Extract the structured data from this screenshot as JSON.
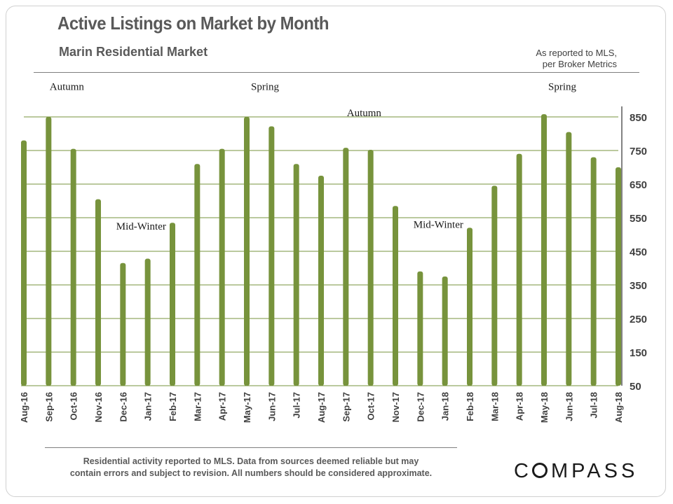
{
  "header": {
    "title": "Active Listings on Market by Month",
    "subtitle": "Marin Residential Market",
    "source_line1": "As reported to MLS,",
    "source_line2": "per Broker Metrics"
  },
  "footer": {
    "disclaimer_line1": "Residential activity reported to MLS. Data from sources  deemed reliable but may",
    "disclaimer_line2": "contain errors and subject to revision. All numbers should  be considered approximate.",
    "logo_part1": "C",
    "logo_part2": "MPASS"
  },
  "colors": {
    "bar": "#77933c",
    "grid": "#77933c",
    "text": "#404040"
  },
  "chart_data": {
    "type": "bar",
    "title": "Active Listings on Market by Month",
    "subtitle": "Marin Residential Market",
    "xlabel": "",
    "ylabel": "",
    "ylim": [
      50,
      850
    ],
    "yticks": [
      50,
      150,
      250,
      350,
      450,
      550,
      650,
      750,
      850
    ],
    "y_axis_position": "right",
    "grid": true,
    "categories": [
      "Aug-16",
      "Sep-16",
      "Oct-16",
      "Nov-16",
      "Dec-16",
      "Jan-17",
      "Feb-17",
      "Mar-17",
      "Apr-17",
      "May-17",
      "Jun-17",
      "Jul-17",
      "Aug-17",
      "Sep-17",
      "Oct-17",
      "Nov-17",
      "Dec-17",
      "Jan-18",
      "Feb-18",
      "Mar-18",
      "Apr-18",
      "May-18",
      "Jun-18",
      "Jul-18",
      "Aug-18"
    ],
    "values": [
      780,
      850,
      755,
      605,
      415,
      428,
      535,
      710,
      755,
      850,
      822,
      710,
      675,
      758,
      752,
      585,
      390,
      375,
      520,
      645,
      740,
      858,
      805,
      730,
      700
    ],
    "annotations": [
      {
        "text": "Autumn",
        "category": "Sep-16",
        "y": 930
      },
      {
        "text": "Spring",
        "category": "May-17",
        "y": 930
      },
      {
        "text": "Autumn",
        "category": "Sep-17",
        "y": 852
      },
      {
        "text": "Mid-Winter",
        "category": "Dec-16",
        "y": 515
      },
      {
        "text": "Mid-Winter",
        "category": "Dec-17",
        "y": 520
      },
      {
        "text": "Spring",
        "category": "May-18",
        "y": 930
      }
    ]
  }
}
